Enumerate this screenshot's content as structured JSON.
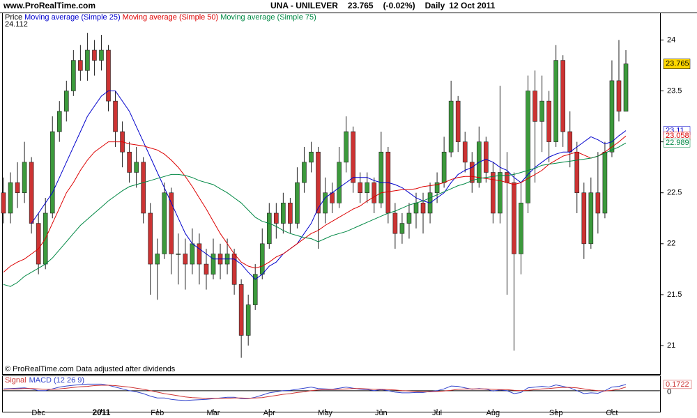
{
  "header": {
    "site": "www.ProRealTime.com",
    "symbol": "UNA - UNILEVER",
    "change": "(-0.02%)",
    "period": "Daily",
    "date": "12 Oct 2011"
  },
  "footer": "© ProRealTime.com  Data adjusted after dividends",
  "chart_data": [
    {
      "type": "candlestick",
      "legend_label": "Price",
      "up_color": "#3c9a3c",
      "down_color": "#cc3333",
      "ylim": [
        20.72,
        24.112
      ],
      "yticks": [
        21,
        21.5,
        22,
        22.5,
        23,
        23.5,
        24
      ],
      "open": [
        22.5,
        22.3,
        22.6,
        22.5,
        22.8,
        22.2,
        21.8,
        22.3,
        23.1,
        23.3,
        23.5,
        23.8,
        23.7,
        23.9,
        23.8,
        23.9,
        23.4,
        23.1,
        22.9,
        22.7,
        22.8,
        22.3,
        21.8,
        21.9,
        22.5,
        21.9,
        21.9,
        21.8,
        22.0,
        21.8,
        21.7,
        21.9,
        21.8,
        21.9,
        21.6,
        21.1,
        21.4,
        21.7,
        22.0,
        22.3,
        22.2,
        22.4,
        22.2,
        22.6,
        22.8,
        22.9,
        22.3,
        22.5,
        22.4,
        22.8,
        23.1,
        22.6,
        22.5,
        22.6,
        22.4,
        22.9,
        22.3,
        22.1,
        22.2,
        22.3,
        22.4,
        22.3,
        22.5,
        22.6,
        22.9,
        23.4,
        23.0,
        22.8,
        22.6,
        23.0,
        22.7,
        22.3,
        22.7,
        22.6,
        21.9,
        22.4,
        23.5,
        23.2,
        23.4,
        23.0,
        23.8,
        23.1,
        22.9,
        22.5,
        22.0,
        22.5,
        22.3,
        22.9,
        23.6,
        23.3
      ],
      "high": [
        22.65,
        22.7,
        22.8,
        23.0,
        22.85,
        22.3,
        22.45,
        23.25,
        23.4,
        23.6,
        23.9,
        23.95,
        24.07,
        24.0,
        24.05,
        23.95,
        23.5,
        23.2,
        23.0,
        22.95,
        22.85,
        22.4,
        22.05,
        22.6,
        22.55,
        22.1,
        22.05,
        22.15,
        22.1,
        21.95,
        22.05,
        22.0,
        22.05,
        21.95,
        21.65,
        21.5,
        21.8,
        22.15,
        22.4,
        22.4,
        22.5,
        22.45,
        22.75,
        22.95,
        23.0,
        22.95,
        22.65,
        22.6,
        22.95,
        23.25,
        23.15,
        22.7,
        22.7,
        22.65,
        23.1,
        22.95,
        22.4,
        22.3,
        22.4,
        22.5,
        22.5,
        22.6,
        22.7,
        23.05,
        23.6,
        23.45,
        23.1,
        22.9,
        23.15,
        23.05,
        22.8,
        23.55,
        22.9,
        22.7,
        22.6,
        23.65,
        23.7,
        23.65,
        23.5,
        23.95,
        23.85,
        23.3,
        23.0,
        22.6,
        22.65,
        22.9,
        23.0,
        23.8,
        24.0,
        23.9
      ],
      "low": [
        22.2,
        22.2,
        22.35,
        22.4,
        22.1,
        21.7,
        21.75,
        22.25,
        23.0,
        23.2,
        23.45,
        23.6,
        23.6,
        23.65,
        23.7,
        23.3,
        22.95,
        22.75,
        22.6,
        22.55,
        22.2,
        21.5,
        21.45,
        21.85,
        21.7,
        21.6,
        21.55,
        21.7,
        21.6,
        21.55,
        21.65,
        21.65,
        21.7,
        21.5,
        20.88,
        21.0,
        21.35,
        21.65,
        21.95,
        22.05,
        22.1,
        22.1,
        22.15,
        22.5,
        22.7,
        21.95,
        22.2,
        22.3,
        22.35,
        22.7,
        22.5,
        22.4,
        22.4,
        22.3,
        22.35,
        22.2,
        21.95,
        22.0,
        22.05,
        22.15,
        22.1,
        22.2,
        22.4,
        22.55,
        22.85,
        22.9,
        22.7,
        22.5,
        22.55,
        22.6,
        22.2,
        22.2,
        21.5,
        20.95,
        21.7,
        22.3,
        22.6,
        22.9,
        22.8,
        22.95,
        22.95,
        22.75,
        22.3,
        21.85,
        21.95,
        22.1,
        22.25,
        22.85,
        23.2,
        23.3
      ],
      "close": [
        22.3,
        22.6,
        22.5,
        22.8,
        22.2,
        21.8,
        22.3,
        23.1,
        23.3,
        23.5,
        23.8,
        23.7,
        23.9,
        23.8,
        23.9,
        23.4,
        23.1,
        22.9,
        22.7,
        22.8,
        22.3,
        21.8,
        21.9,
        22.5,
        21.9,
        21.9,
        21.8,
        22.0,
        21.8,
        21.7,
        21.9,
        21.8,
        21.9,
        21.6,
        21.1,
        21.4,
        21.7,
        22.0,
        22.3,
        22.2,
        22.4,
        22.2,
        22.6,
        22.8,
        22.9,
        22.3,
        22.5,
        22.4,
        22.8,
        23.1,
        22.6,
        22.5,
        22.6,
        22.4,
        22.9,
        22.3,
        22.1,
        22.2,
        22.3,
        22.4,
        22.3,
        22.5,
        22.6,
        22.9,
        23.4,
        23.0,
        22.8,
        22.6,
        23.0,
        22.7,
        22.3,
        22.7,
        22.6,
        21.9,
        22.4,
        23.5,
        23.2,
        23.4,
        23.0,
        23.8,
        23.1,
        22.9,
        22.5,
        22.0,
        22.5,
        22.3,
        22.9,
        23.6,
        23.3,
        23.765
      ],
      "series": [
        {
          "name": "Moving average (Simple 25)",
          "color": "#0000cc",
          "values": [
            null,
            null,
            null,
            null,
            22.2,
            22.3,
            22.4,
            22.5,
            22.65,
            22.8,
            22.95,
            23.1,
            23.25,
            23.35,
            23.45,
            23.5,
            23.5,
            23.4,
            23.3,
            23.15,
            23.0,
            22.85,
            22.7,
            22.55,
            22.4,
            22.25,
            22.1,
            22.0,
            21.95,
            21.9,
            21.85,
            21.85,
            21.85,
            21.85,
            21.8,
            21.72,
            21.65,
            21.7,
            21.78,
            21.82,
            21.9,
            21.95,
            22.0,
            22.1,
            22.2,
            22.35,
            22.45,
            22.5,
            22.55,
            22.6,
            22.65,
            22.65,
            22.65,
            22.62,
            22.6,
            22.6,
            22.58,
            22.55,
            22.5,
            22.45,
            22.42,
            22.4,
            22.45,
            22.5,
            22.6,
            22.68,
            22.72,
            22.75,
            22.8,
            22.83,
            22.8,
            22.75,
            22.72,
            22.65,
            22.6,
            22.68,
            22.75,
            22.8,
            22.85,
            22.88,
            22.9,
            22.9,
            22.95,
            23.0,
            23.05,
            23.02,
            22.98,
            23.0,
            23.06,
            23.11
          ]
        },
        {
          "name": "Moving average (Simple 50)",
          "color": "#dd0000",
          "values": [
            21.72,
            21.78,
            21.82,
            21.85,
            21.9,
            21.95,
            22.05,
            22.2,
            22.35,
            22.5,
            22.6,
            22.72,
            22.82,
            22.9,
            22.95,
            23.0,
            23.0,
            23.0,
            22.98,
            22.97,
            22.96,
            22.94,
            22.92,
            22.88,
            22.82,
            22.75,
            22.66,
            22.56,
            22.45,
            22.34,
            22.22,
            22.1,
            22.0,
            21.9,
            21.82,
            21.78,
            21.76,
            21.78,
            21.82,
            21.87,
            21.9,
            21.95,
            22.0,
            22.05,
            22.1,
            22.13,
            22.18,
            22.22,
            22.26,
            22.3,
            22.34,
            22.37,
            22.42,
            22.46,
            22.5,
            22.51,
            22.52,
            22.53,
            22.53,
            22.54,
            22.56,
            22.57,
            22.58,
            22.6,
            22.63,
            22.65,
            22.66,
            22.66,
            22.65,
            22.64,
            22.63,
            22.62,
            22.6,
            22.58,
            22.6,
            22.64,
            22.68,
            22.72,
            22.78,
            22.82,
            22.86,
            22.88,
            22.9,
            22.87,
            22.84,
            22.86,
            22.9,
            22.95,
            23.0,
            23.058
          ]
        },
        {
          "name": "Moving average (Simple 75)",
          "color": "#008844",
          "values": [
            21.6,
            21.58,
            21.62,
            21.68,
            21.72,
            21.76,
            21.8,
            21.86,
            21.94,
            22.02,
            22.1,
            22.18,
            22.24,
            22.3,
            22.36,
            22.42,
            22.47,
            22.52,
            22.56,
            22.58,
            22.6,
            22.62,
            22.64,
            22.66,
            22.68,
            22.68,
            22.67,
            22.65,
            22.62,
            22.6,
            22.58,
            22.54,
            22.5,
            22.45,
            22.4,
            22.33,
            22.26,
            22.22,
            22.2,
            22.17,
            22.13,
            22.1,
            22.08,
            22.06,
            22.05,
            22.02,
            22.05,
            22.08,
            22.1,
            22.12,
            22.15,
            22.18,
            22.21,
            22.24,
            22.27,
            22.3,
            22.32,
            22.35,
            22.38,
            22.4,
            22.42,
            22.45,
            22.48,
            22.51,
            22.54,
            22.57,
            22.59,
            22.62,
            22.64,
            22.65,
            22.66,
            22.67,
            22.67,
            22.68,
            22.7,
            22.72,
            22.74,
            22.77,
            22.78,
            22.79,
            22.8,
            22.81,
            22.82,
            22.83,
            22.84,
            22.86,
            22.89,
            22.92,
            22.95,
            22.989
          ]
        }
      ]
    },
    {
      "type": "line",
      "ylim": [
        -0.58,
        0.4
      ],
      "yticks": [
        0
      ],
      "categories": [
        null,
        null,
        null,
        null,
        null,
        "Dec",
        null,
        null,
        null,
        null,
        null,
        null,
        null,
        null,
        "2011",
        null,
        null,
        null,
        null,
        null,
        null,
        null,
        "Feb",
        null,
        null,
        null,
        null,
        null,
        null,
        null,
        "Mar",
        null,
        null,
        null,
        null,
        null,
        null,
        null,
        "Apr",
        null,
        null,
        null,
        null,
        null,
        null,
        null,
        "May",
        null,
        null,
        null,
        null,
        null,
        null,
        null,
        "Jun",
        null,
        null,
        null,
        null,
        null,
        null,
        null,
        "Jul",
        null,
        null,
        null,
        null,
        null,
        null,
        null,
        "Aug",
        null,
        null,
        null,
        null,
        null,
        null,
        null,
        null,
        "Sep",
        null,
        null,
        null,
        null,
        null,
        null,
        null,
        "Oct",
        null,
        null
      ],
      "series": [
        {
          "name": "MACD (12 26 9)",
          "color": "#3344cc",
          "values": [
            0.05,
            0.06,
            0.07,
            0.08,
            0.05,
            0.0,
            0.0,
            0.05,
            0.1,
            0.13,
            0.15,
            0.17,
            0.18,
            0.18,
            0.18,
            0.15,
            0.1,
            0.05,
            0.0,
            -0.03,
            -0.08,
            -0.15,
            -0.2,
            -0.2,
            -0.24,
            -0.26,
            -0.27,
            -0.26,
            -0.25,
            -0.24,
            -0.22,
            -0.2,
            -0.18,
            -0.18,
            -0.22,
            -0.22,
            -0.18,
            -0.12,
            -0.06,
            -0.03,
            0.0,
            0.01,
            0.04,
            0.07,
            0.1,
            0.06,
            0.05,
            0.04,
            0.07,
            0.1,
            0.07,
            0.04,
            0.03,
            0.0,
            0.03,
            0.0,
            -0.04,
            -0.06,
            -0.06,
            -0.05,
            -0.05,
            -0.02,
            0.0,
            0.05,
            0.13,
            0.12,
            0.08,
            0.04,
            0.06,
            0.04,
            -0.01,
            0.02,
            0.0,
            -0.08,
            -0.05,
            0.08,
            0.1,
            0.12,
            0.1,
            0.16,
            0.12,
            0.08,
            0.0,
            -0.08,
            -0.06,
            -0.07,
            0.0,
            0.1,
            0.12,
            0.1722
          ]
        },
        {
          "name": "Signal",
          "color": "#cc3333",
          "values": [
            0.04,
            0.05,
            0.05,
            0.06,
            0.06,
            0.05,
            0.04,
            0.04,
            0.05,
            0.07,
            0.09,
            0.11,
            0.12,
            0.14,
            0.15,
            0.15,
            0.14,
            0.12,
            0.1,
            0.07,
            0.04,
            0.0,
            -0.04,
            -0.08,
            -0.11,
            -0.14,
            -0.17,
            -0.19,
            -0.2,
            -0.21,
            -0.21,
            -0.21,
            -0.21,
            -0.2,
            -0.2,
            -0.21,
            -0.2,
            -0.19,
            -0.16,
            -0.13,
            -0.1,
            -0.08,
            -0.05,
            -0.03,
            0.0,
            0.02,
            0.03,
            0.03,
            0.04,
            0.05,
            0.06,
            0.06,
            0.05,
            0.04,
            0.04,
            0.03,
            0.02,
            0.0,
            -0.01,
            -0.02,
            -0.03,
            -0.03,
            -0.02,
            -0.01,
            0.01,
            0.04,
            0.05,
            0.05,
            0.05,
            0.05,
            0.04,
            0.03,
            0.03,
            0.01,
            0.0,
            0.01,
            0.03,
            0.05,
            0.06,
            0.08,
            0.09,
            0.09,
            0.08,
            0.05,
            0.02,
            0.0,
            -0.01,
            0.01,
            0.04,
            0.1
          ]
        }
      ]
    }
  ]
}
